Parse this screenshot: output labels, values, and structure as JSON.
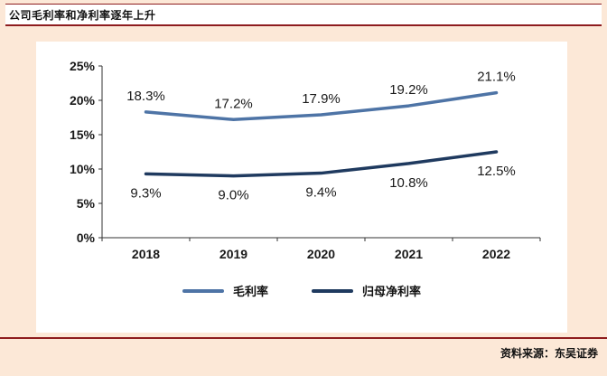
{
  "header": {
    "title": "公司毛利率和净利率逐年上升"
  },
  "footer": {
    "source": "资料来源：东吴证券"
  },
  "colors": {
    "background": "#fce8d7",
    "accent_red": "#8e1c1e",
    "axis": "#333333",
    "text": "#1a1a1a"
  },
  "chart_data": {
    "type": "line",
    "title": "公司毛利率和净利率逐年上升",
    "categories": [
      "2018",
      "2019",
      "2020",
      "2021",
      "2022"
    ],
    "series": [
      {
        "name": "毛利率",
        "values": [
          18.3,
          17.2,
          17.9,
          19.2,
          21.1
        ],
        "labels": [
          "18.3%",
          "17.2%",
          "17.9%",
          "19.2%",
          "21.1%"
        ],
        "color": "#4e74a6",
        "label_position": "above"
      },
      {
        "name": "归母净利率",
        "values": [
          9.3,
          9.0,
          9.4,
          10.8,
          12.5
        ],
        "labels": [
          "9.3%",
          "9.0%",
          "9.4%",
          "10.8%",
          "12.5%"
        ],
        "color": "#1f3a5f",
        "label_position": "below"
      }
    ],
    "ylim": [
      0,
      25
    ],
    "yticks": [
      0,
      5,
      10,
      15,
      20,
      25
    ],
    "ytick_format": "percent",
    "grid": false,
    "legend_position": "bottom"
  }
}
